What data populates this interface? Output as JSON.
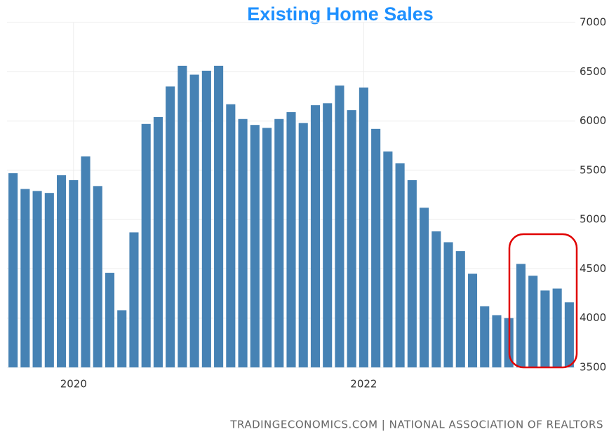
{
  "chart_data": {
    "type": "bar",
    "title": "Existing Home Sales",
    "source": "TRADINGECONOMICS.COM | NATIONAL ASSOCIATION OF REALTORS",
    "categories": [
      null,
      null,
      null,
      null,
      null,
      "2020",
      null,
      null,
      null,
      null,
      null,
      null,
      null,
      null,
      null,
      null,
      null,
      null,
      null,
      null,
      null,
      null,
      null,
      null,
      null,
      null,
      null,
      null,
      null,
      "2022",
      null,
      null,
      null,
      null,
      null,
      null,
      null,
      null,
      null,
      null,
      null,
      null,
      null,
      null,
      null,
      null,
      null
    ],
    "values": [
      5470,
      5310,
      5290,
      5270,
      5450,
      5400,
      5640,
      5340,
      4460,
      4080,
      4870,
      5970,
      6040,
      6350,
      6560,
      6470,
      6510,
      6560,
      6170,
      6020,
      5960,
      5930,
      6020,
      6090,
      5980,
      6160,
      6180,
      6360,
      6110,
      6340,
      5920,
      5690,
      5570,
      5400,
      5120,
      4880,
      4770,
      4680,
      4450,
      4120,
      4030,
      4000,
      4550,
      4430,
      4280,
      4300,
      4160
    ],
    "color": "#4682b4",
    "ylim": [
      3500,
      7000
    ],
    "yticks": [
      3500,
      4000,
      4500,
      5000,
      5500,
      6000,
      6500,
      7000
    ],
    "grid": true
  }
}
